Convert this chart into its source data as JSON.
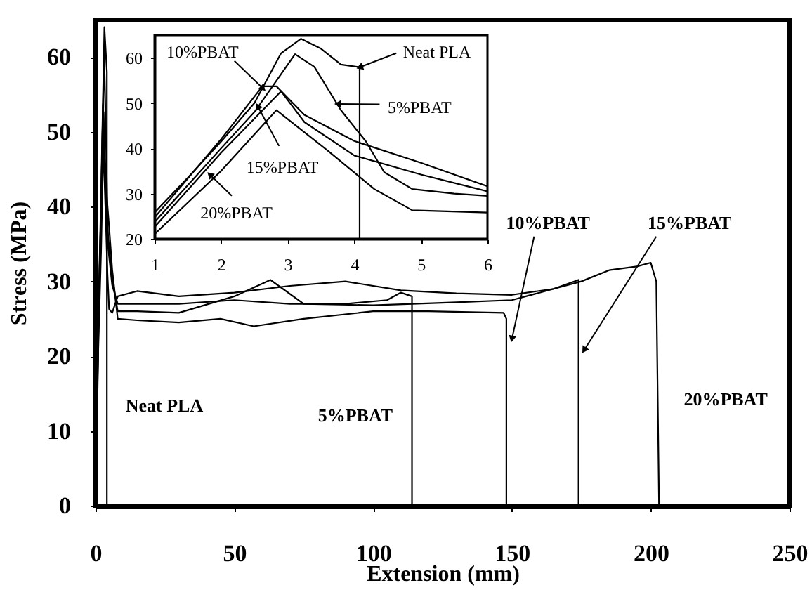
{
  "chart_data": [
    {
      "type": "line",
      "xlabel": "Extension (mm)",
      "ylabel": "Stress (MPa)",
      "xlim": [
        0,
        250
      ],
      "ylim": [
        0,
        65
      ],
      "xticks": [
        0,
        50,
        100,
        150,
        200,
        250
      ],
      "yticks": [
        0,
        10,
        20,
        30,
        40,
        50,
        60
      ],
      "grid": false,
      "series": [
        {
          "color": "#000000",
          "x": [
            0,
            1,
            2,
            3.2,
            4.1,
            4.1
          ],
          "values": [
            0,
            25,
            41.5,
            64,
            58,
            0
          ]
        },
        {
          "color": "#000000",
          "x": [
            0,
            1,
            2,
            3.1,
            3.8,
            4.5,
            6,
            8,
            15,
            30,
            50,
            70,
            90,
            105,
            110,
            114,
            114
          ],
          "values": [
            0,
            23.7,
            40,
            60.8,
            48.4,
            34.7,
            29.5,
            27,
            27,
            27,
            27.5,
            27,
            27,
            27.5,
            28.5,
            28,
            0
          ]
        },
        {
          "color": "#000000",
          "x": [
            0,
            1,
            2,
            2.7,
            3.3,
            4,
            5,
            6,
            8,
            15,
            30,
            45,
            57,
            75,
            100,
            120,
            147,
            148,
            148
          ],
          "values": [
            0,
            24.7,
            40,
            53.7,
            47.4,
            41.6,
            36.8,
            31.6,
            25,
            24.8,
            24.5,
            25,
            24,
            25,
            26,
            26,
            25.8,
            25,
            0
          ]
        },
        {
          "color": "#000000",
          "x": [
            0,
            1,
            2,
            2.9,
            3.3,
            4,
            5,
            6,
            8,
            15,
            30,
            50,
            63,
            75,
            100,
            130,
            150,
            165,
            174,
            174
          ],
          "values": [
            0,
            22.6,
            38,
            52.6,
            45.8,
            38.4,
            34.2,
            30.5,
            26,
            26,
            25.8,
            28,
            30.2,
            27,
            26.8,
            27.2,
            27.5,
            29,
            30.2,
            0
          ]
        },
        {
          "color": "#000000",
          "x": [
            0,
            1,
            2,
            2.8,
            3.6,
            4.3,
            4.9,
            6,
            8,
            15,
            30,
            50,
            70,
            90,
            110,
            130,
            150,
            165,
            175,
            185,
            195,
            200,
            202,
            203
          ],
          "values": [
            0,
            21,
            34,
            48.4,
            39.5,
            31,
            26.3,
            25.8,
            28,
            28.7,
            28,
            28.5,
            29.4,
            30,
            28.8,
            28.4,
            28.2,
            29,
            30,
            31.5,
            32,
            32.5,
            30,
            0
          ]
        }
      ],
      "annotations": [
        "Neat PLA",
        "5%PBAT",
        {
          "text": "10%PBAT",
          "x": 150,
          "y": 22.3
        },
        {
          "text": "15%PBAT",
          "x": 176,
          "y": 20.8
        },
        "20%PBAT"
      ]
    },
    {
      "type": "line",
      "xlim": [
        1,
        6
      ],
      "ylim": [
        20,
        65
      ],
      "xticks": [
        1,
        2,
        3,
        4,
        5,
        6
      ],
      "yticks": [
        20,
        30,
        40,
        50,
        60
      ],
      "grid": false,
      "series": [
        {
          "color": "#000000",
          "x": [
            1,
            1.5,
            2,
            2.5,
            2.9,
            3.2,
            3.5,
            3.8,
            4.08,
            4.08
          ],
          "values": [
            25.8,
            33.5,
            41.5,
            50,
            61,
            64.2,
            62,
            58.5,
            57.9,
            20
          ]
        },
        {
          "color": "#000000",
          "x": [
            1,
            2,
            2.5,
            3.11,
            3.4,
            3.8,
            4.17,
            4.45,
            4.87,
            5.5,
            6
          ],
          "values": [
            23.7,
            40,
            48,
            60.8,
            58,
            48.4,
            41.6,
            34.7,
            31,
            30,
            29.5
          ]
        },
        {
          "color": "#000000",
          "x": [
            1,
            2,
            2.62,
            2.83,
            3.25,
            4,
            5,
            6
          ],
          "values": [
            24.7,
            42,
            53.7,
            53.7,
            47.4,
            41.6,
            36.8,
            31.6
          ]
        },
        {
          "color": "#000000",
          "x": [
            1,
            2,
            2.9,
            3.25,
            4,
            5,
            6
          ],
          "values": [
            22.6,
            39,
            52.6,
            45.8,
            38.4,
            34.2,
            30.5
          ]
        },
        {
          "color": "#000000",
          "x": [
            1,
            2,
            2.83,
            3.6,
            4.3,
            4.87,
            6
          ],
          "values": [
            21,
            35,
            48.4,
            39.5,
            31,
            26.3,
            25.8
          ]
        }
      ],
      "annotations": [
        {
          "text": "10%PBAT",
          "x": 2.63,
          "y": 53.2
        },
        {
          "text": "Neat PLA",
          "x": 4.08,
          "y": 57.9
        },
        {
          "text": "5%PBAT",
          "x": 3.75,
          "y": 49.8
        },
        {
          "text": "15%PBAT",
          "x": 2.55,
          "y": 49.3
        },
        {
          "text": "20%PBAT",
          "x": 1.83,
          "y": 34.2
        }
      ]
    }
  ]
}
